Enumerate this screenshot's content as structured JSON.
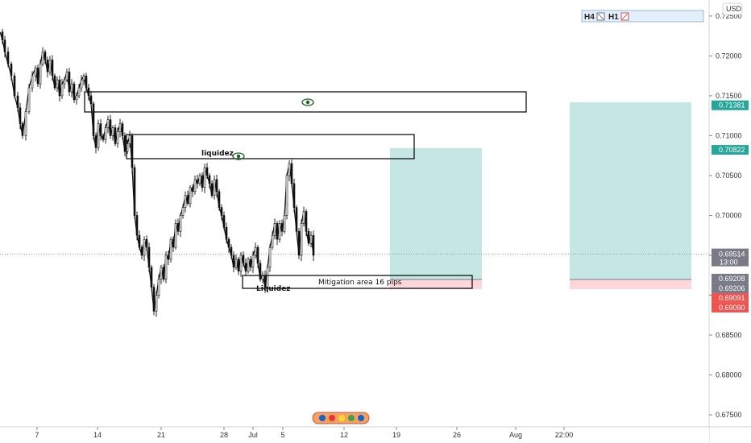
{
  "chart_data": {
    "type": "line",
    "currency": "USD",
    "y_ticks": [
      "0.72500",
      "0.72000",
      "0.71500",
      "0.71000",
      "0.70500",
      "0.70000",
      "0.69500",
      "0.69000",
      "0.68500",
      "0.68000",
      "0.67500"
    ],
    "y_range": [
      0.6745,
      0.7258
    ],
    "x_ticks": [
      "7",
      "14",
      "21",
      "28",
      "Jul",
      "5",
      "12",
      "19",
      "26",
      "Aug",
      "22:00"
    ],
    "series": [
      {
        "x": [
          0,
          3,
          6,
          10,
          14,
          18,
          22,
          25,
          28,
          32,
          36,
          40,
          44,
          47,
          50,
          53,
          56,
          59,
          62,
          65,
          68,
          71,
          74,
          77,
          80,
          83,
          86,
          89,
          92,
          95,
          98,
          101,
          104,
          107,
          110,
          113,
          116,
          119,
          122,
          125,
          128,
          131,
          134,
          137,
          140,
          143,
          146,
          149,
          152,
          155,
          158,
          161,
          164,
          167,
          170,
          173,
          176,
          179,
          182,
          185,
          188,
          191,
          194,
          197,
          200,
          203,
          206,
          209,
          212,
          215,
          218,
          221,
          224,
          227,
          230,
          233,
          236,
          239,
          242,
          245,
          248,
          251,
          254,
          257,
          260,
          263,
          266,
          269,
          272,
          275,
          278,
          281,
          284,
          287,
          290,
          293,
          296,
          299,
          302,
          305,
          308,
          311,
          314,
          317,
          320,
          323,
          326,
          329,
          332,
          335,
          338,
          341,
          344,
          347,
          350,
          353,
          356,
          359,
          362,
          365,
          368,
          371,
          374,
          377,
          380,
          383,
          386,
          389
        ],
        "y": [
          0.723,
          0.722,
          0.7205,
          0.719,
          0.7175,
          0.715,
          0.7135,
          0.7115,
          0.71,
          0.713,
          0.716,
          0.7175,
          0.7185,
          0.7165,
          0.719,
          0.7205,
          0.7195,
          0.718,
          0.7195,
          0.7175,
          0.716,
          0.717,
          0.715,
          0.7165,
          0.717,
          0.718,
          0.7155,
          0.7165,
          0.7145,
          0.715,
          0.716,
          0.717,
          0.7175,
          0.716,
          0.715,
          0.714,
          0.71,
          0.7085,
          0.7115,
          0.71,
          0.7095,
          0.711,
          0.712,
          0.71,
          0.711,
          0.709,
          0.7105,
          0.7115,
          0.71,
          0.708,
          0.709,
          0.71,
          0.706,
          0.7,
          0.6975,
          0.696,
          0.695,
          0.697,
          0.696,
          0.6935,
          0.691,
          0.688,
          0.69,
          0.692,
          0.6935,
          0.692,
          0.695,
          0.6945,
          0.697,
          0.696,
          0.699,
          0.698,
          0.7,
          0.701,
          0.7025,
          0.7015,
          0.7035,
          0.703,
          0.7045,
          0.704,
          0.705,
          0.7035,
          0.706,
          0.705,
          0.704,
          0.7025,
          0.7045,
          0.703,
          0.701,
          0.7,
          0.6985,
          0.697,
          0.696,
          0.695,
          0.6935,
          0.6945,
          0.693,
          0.695,
          0.694,
          0.693,
          0.6945,
          0.6935,
          0.695,
          0.696,
          0.694,
          0.692,
          0.6925,
          0.691,
          0.6935,
          0.696,
          0.6975,
          0.699,
          0.697,
          0.699,
          0.698,
          0.7,
          0.705,
          0.7065,
          0.704,
          0.701,
          0.698,
          0.695,
          0.699,
          0.7005,
          0.698,
          0.6965,
          0.6975,
          0.695
        ]
      }
    ],
    "current_price": {
      "value": 0.69514,
      "label": "0.69514",
      "countdown": "13:00"
    },
    "price_labels": [
      {
        "value": 0.71381,
        "label": "0.71381",
        "color": "#26a69a"
      },
      {
        "value": 0.70822,
        "label": "0.70822",
        "color": "#26a69a"
      },
      {
        "value": 0.69208,
        "label": "0.69208",
        "color": "#787b86"
      },
      {
        "value": 0.69206,
        "label": "0.69206",
        "color": "#787b86"
      },
      {
        "value": 0.69091,
        "label": "0.69091",
        "color": "#ef5350"
      },
      {
        "value": 0.6909,
        "label": "0.69090",
        "color": "#ef5350"
      }
    ],
    "annotations": {
      "liquidity_upper": "liquidez",
      "liquidity_lower": "Liquidez",
      "mitigation": "Mitigation area 16 pips"
    },
    "legend": {
      "items": [
        "H4",
        "H1"
      ],
      "position": "top-right"
    },
    "colors": {
      "candle": "#111111",
      "profit_zone": "#b2dfdb",
      "loss_zone": "#ffcdd2",
      "axis_bg": "#ffffff"
    }
  }
}
